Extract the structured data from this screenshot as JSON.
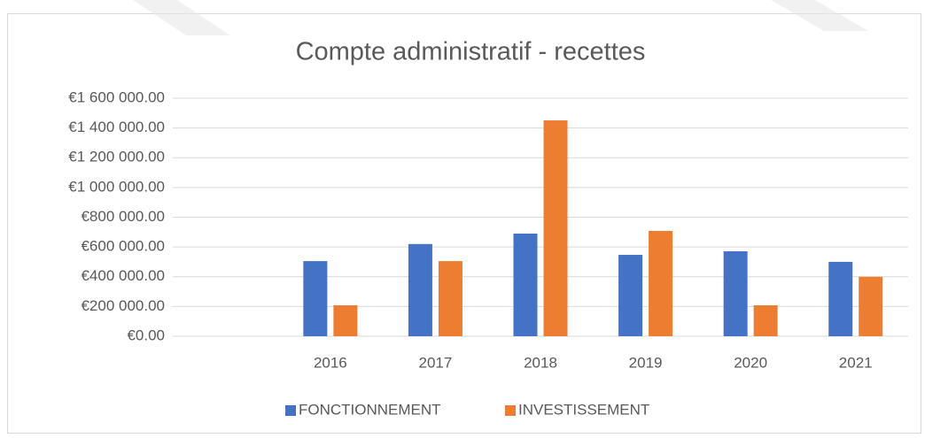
{
  "chart_data": {
    "type": "bar",
    "title": "Compte administratif - recettes",
    "categories": [
      null,
      "2016",
      "2017",
      "2018",
      "2019",
      "2020",
      "2021"
    ],
    "series": [
      {
        "name": "FONCTIONNEMENT",
        "color": "#4472c4",
        "values": [
          null,
          505000,
          620000,
          690000,
          547000,
          571000,
          500000
        ]
      },
      {
        "name": "INVESTISSEMENT",
        "color": "#ed7d31",
        "values": [
          null,
          208000,
          505000,
          1451000,
          708000,
          208000,
          400000
        ]
      }
    ],
    "ylim": [
      0,
      1600000
    ],
    "yticks": [
      {
        "value": 0,
        "label": "€0.00"
      },
      {
        "value": 200000,
        "label": "€200 000.00"
      },
      {
        "value": 400000,
        "label": "€400 000.00"
      },
      {
        "value": 600000,
        "label": "€600 000.00"
      },
      {
        "value": 800000,
        "label": "€800 000.00"
      },
      {
        "value": 1000000,
        "label": "€1 000 000.00"
      },
      {
        "value": 1200000,
        "label": "€1 200 000.00"
      },
      {
        "value": 1400000,
        "label": "€1 400 000.00"
      },
      {
        "value": 1600000,
        "label": "€1 600 000.00"
      }
    ],
    "grid": true,
    "legend": "bottom"
  }
}
